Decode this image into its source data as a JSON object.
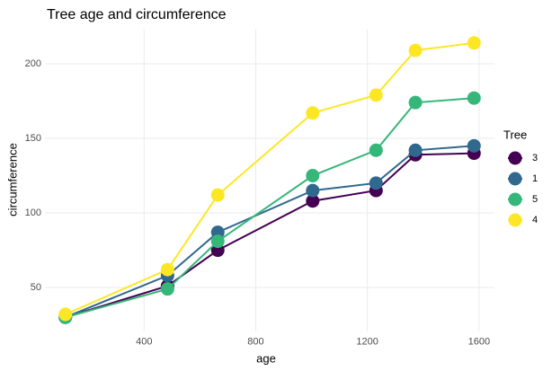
{
  "chart_data": {
    "type": "line",
    "title": "Tree age and circumference",
    "x_label": "age",
    "y_label": "circumference",
    "legend_title": "Tree",
    "x": [
      118,
      484,
      664,
      1004,
      1231,
      1372,
      1582
    ],
    "series": [
      {
        "name": "3",
        "color": "#440154",
        "values": [
          30,
          51,
          75,
          108,
          115,
          139,
          140
        ]
      },
      {
        "name": "1",
        "color": "#31688e",
        "values": [
          30,
          58,
          87,
          115,
          120,
          142,
          145
        ]
      },
      {
        "name": "5",
        "color": "#35b779",
        "values": [
          30,
          49,
          81,
          125,
          142,
          174,
          177
        ]
      },
      {
        "name": "4",
        "color": "#fde725",
        "values": [
          32,
          62,
          112,
          167,
          179,
          209,
          214
        ]
      }
    ],
    "xlim": [
      44.8,
      1655.2
    ],
    "xticks": [
      400,
      800,
      1200,
      1600
    ],
    "ylim": [
      20.8,
      223.2
    ],
    "yticks": [
      50,
      100,
      150,
      200
    ],
    "grid": true,
    "legend": "right"
  }
}
